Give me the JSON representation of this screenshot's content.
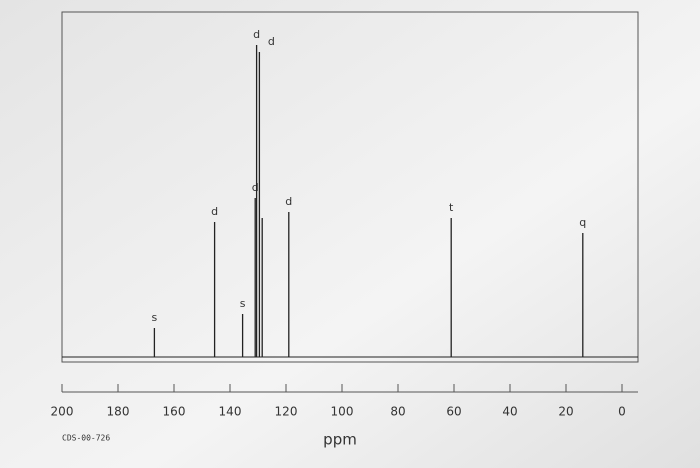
{
  "chart_data": {
    "type": "stem",
    "x": [
      167,
      145.5,
      135.5,
      131,
      130.5,
      129.5,
      128.5,
      119,
      61,
      14
    ],
    "values": [
      29,
      135,
      43,
      159,
      312,
      305,
      139,
      145,
      139,
      124
    ],
    "labels": [
      "s",
      "d",
      "s",
      "d",
      "d",
      "d",
      null,
      "d",
      "t",
      "q"
    ],
    "color": "#222222",
    "xlim": [
      200,
      0
    ],
    "ylim": [
      0,
      345
    ],
    "xticks": [
      200,
      180,
      160,
      140,
      120,
      100,
      80,
      60,
      40,
      20,
      0
    ],
    "xlabel": "ppm",
    "code": "CDS-00-726"
  }
}
